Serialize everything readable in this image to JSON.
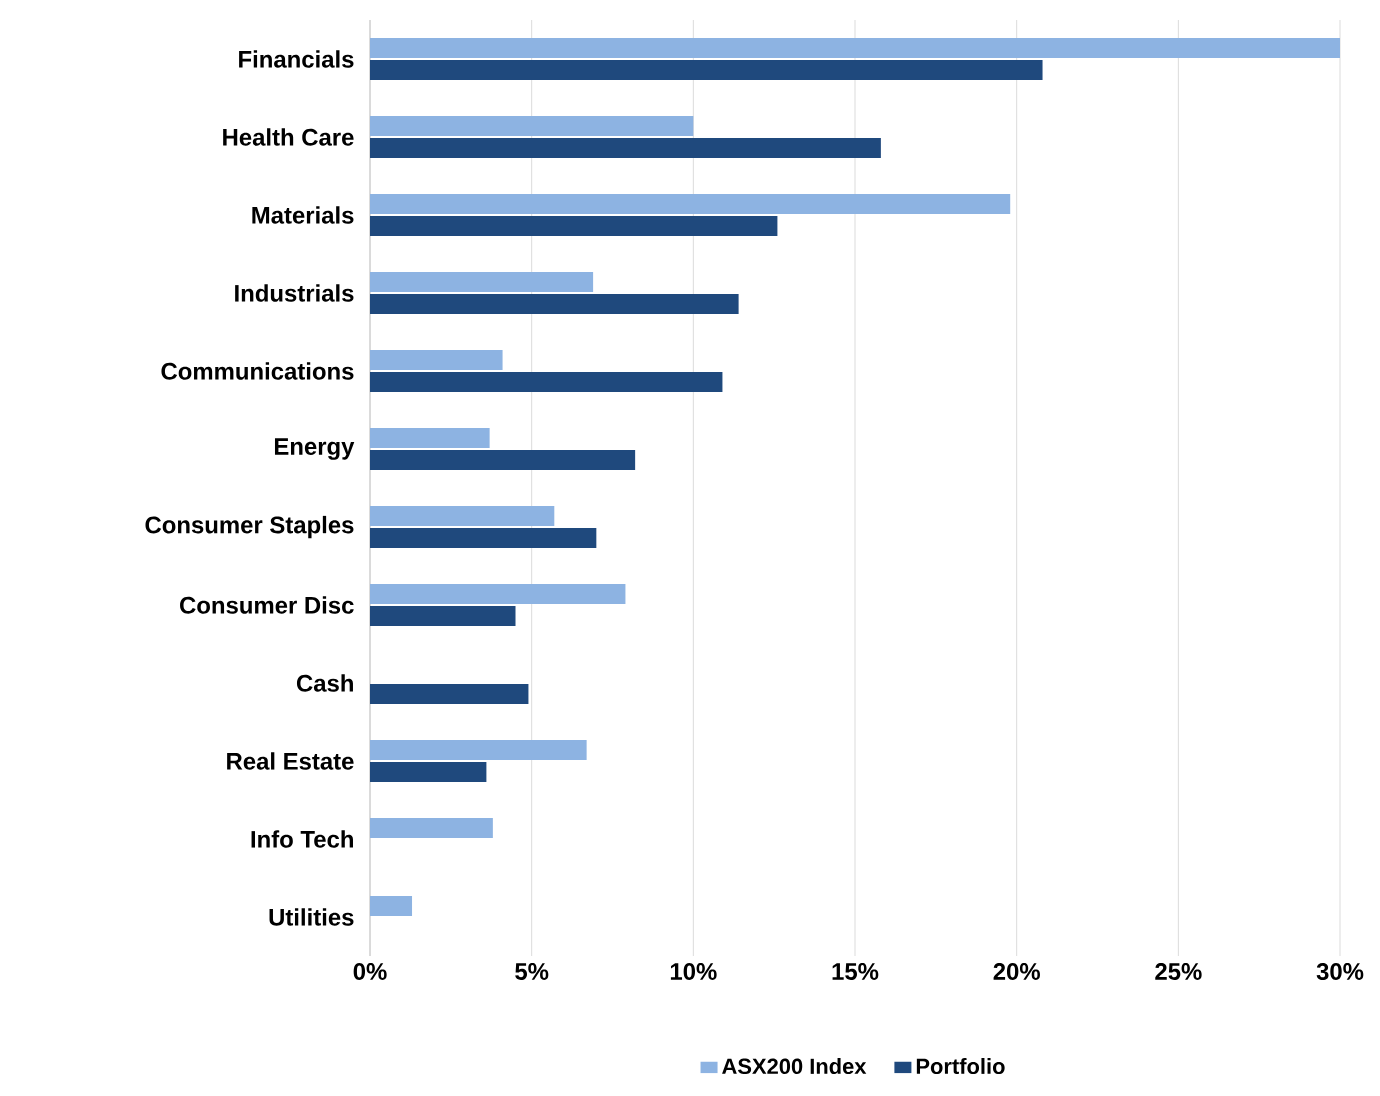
{
  "chart_data": {
    "type": "bar",
    "orientation": "horizontal",
    "categories": [
      "Financials",
      "Health Care",
      "Materials",
      "Industrials",
      "Communications",
      "Energy",
      "Consumer Staples",
      "Consumer Disc",
      "Cash",
      "Real Estate",
      "Info Tech",
      "Utilities"
    ],
    "series": [
      {
        "name": "ASX200 Index",
        "color": "#8db3e2",
        "values": [
          30.0,
          10.0,
          19.8,
          6.9,
          4.1,
          3.7,
          5.7,
          7.9,
          null,
          6.7,
          3.8,
          1.3
        ]
      },
      {
        "name": "Portfolio",
        "color": "#1f497d",
        "values": [
          20.8,
          15.8,
          12.6,
          11.4,
          10.9,
          8.2,
          7.0,
          4.5,
          4.9,
          3.6,
          null,
          null
        ]
      }
    ],
    "xlim": [
      0,
      30
    ],
    "xticks": [
      {
        "value": 0,
        "label": "0%"
      },
      {
        "value": 5,
        "label": "5%"
      },
      {
        "value": 10,
        "label": "10%"
      },
      {
        "value": 15,
        "label": "15%"
      },
      {
        "value": 20,
        "label": "20%"
      },
      {
        "value": 25,
        "label": "25%"
      },
      {
        "value": 30,
        "label": "30%"
      }
    ],
    "grid": "x",
    "legend": "bottom"
  }
}
